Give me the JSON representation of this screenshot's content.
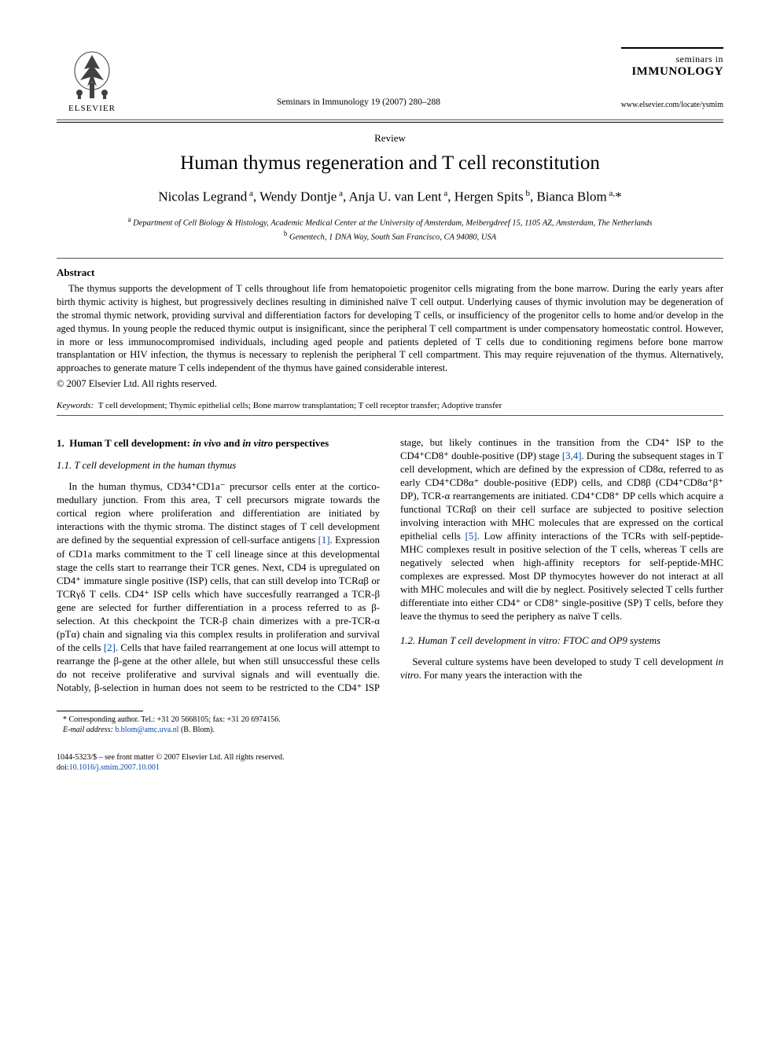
{
  "publisher": {
    "name": "ELSEVIER",
    "tree_fill": "#414141",
    "text_color": "#000000"
  },
  "journal": {
    "reference_line": "Seminars in Immunology 19 (2007) 280–288",
    "logo_line1": "seminars in",
    "logo_line2": "IMMUNOLOGY",
    "url": "www.elsevier.com/locate/ysmim"
  },
  "article": {
    "type": "Review",
    "title": "Human thymus regeneration and T cell reconstitution"
  },
  "authors_html": "Nicolas Legrand<sup> a</sup>, Wendy Dontje<sup> a</sup>, Anja U. van Lent<sup> a</sup>, Hergen Spits<sup> b</sup>, Bianca Blom<sup> a,</sup>*",
  "affiliations": {
    "a": "Department of Cell Biology & Histology, Academic Medical Center at the University of Amsterdam, Meibergdreef 15, 1105 AZ, Amsterdam, The Netherlands",
    "b": "Genentech, 1 DNA Way, South San Francisco, CA 94080, USA"
  },
  "abstract": {
    "heading": "Abstract",
    "text": "The thymus supports the development of T cells throughout life from hematopoietic progenitor cells migrating from the bone marrow. During the early years after birth thymic activity is highest, but progressively declines resulting in diminished naïve T cell output. Underlying causes of thymic involution may be degeneration of the stromal thymic network, providing survival and differentiation factors for developing T cells, or insufficiency of the progenitor cells to home and/or develop in the aged thymus. In young people the reduced thymic output is insignificant, since the peripheral T cell compartment is under compensatory homeostatic control. However, in more or less immunocompromised individuals, including aged people and patients depleted of T cells due to conditioning regimens before bone marrow transplantation or HIV infection, the thymus is necessary to replenish the peripheral T cell compartment. This may require rejuvenation of the thymus. Alternatively, approaches to generate mature T cells independent of the thymus have gained considerable interest.",
    "copyright": "© 2007 Elsevier Ltd. All rights reserved."
  },
  "keywords": {
    "label": "Keywords:",
    "text": "T cell development; Thymic epithelial cells; Bone marrow transplantation; T cell receptor transfer; Adoptive transfer"
  },
  "sections": {
    "s1": {
      "heading": "1.  Human T cell development: in vivo and in vitro perspectives",
      "s1_1": {
        "heading": "1.1.  T cell development in the human thymus",
        "para1_part1": "In the human thymus, CD34⁺CD1a⁻ precursor cells enter at the cortico-medullary junction. From this area, T cell precursors migrate towards the cortical region where proliferation and differentiation are initiated by interactions with the thymic stroma. The distinct stages of T cell development are defined by the sequential expression of cell-surface antigens ",
        "cite1": "[1]",
        "para1_part2": ". Expression of CD1a marks commitment to the T cell lineage since at this developmental stage the cells start to rearrange their TCR genes. Next, CD4 is upregulated on CD4⁺ immature single positive (ISP) cells, that can still develop into TCRαβ or TCRγδ T cells. CD4⁺ ISP cells which have succesfully rearranged a TCR-β gene are selected for further differentiation in a process referred to as β-selection. At this checkpoint the TCR-β chain dimerizes with a pre-TCR-α (pTα) chain and signaling via this complex results in proliferation and survival of the cells ",
        "cite2": "[2]",
        "para1_part3": ". Cells that have failed rearrangement at one locus will attempt to rearrange the β-gene at the other allele, but when still unsuccessful these cells do not receive proliferative and survival signals and will eventually die. Notably, β-selection in human does not seem to be restricted to the CD4⁺ ISP stage, but likely continues in the transition from the CD4⁺ ISP to the CD4⁺CD8⁺ double-positive (DP) stage ",
        "cite3": "[3,4]",
        "para1_part4": ". During the subsequent stages in T cell development, which are defined by the expression of CD8α, referred to as early CD4⁺CD8α⁺ double-positive (EDP) cells, and CD8β (CD4⁺CD8α⁺β⁺ DP), TCR-α rearrangements are initiated. CD4⁺CD8⁺ DP cells which acquire a functional TCRαβ on their cell surface are subjected to positive selection involving interaction with MHC molecules that are expressed on the cortical epithelial cells ",
        "cite5": "[5]",
        "para1_part5": ". Low affinity interactions of the TCRs with self-peptide-MHC complexes result in positive selection of the T cells, whereas T cells are negatively selected when high-affinity receptors for self-peptide-MHC complexes are expressed. Most DP thymocytes however do not interact at all with MHC molecules and will die by neglect. Positively selected T cells further differentiate into either CD4⁺ or CD8⁺ single-positive (SP) T cells, before they leave the thymus to seed the periphery as naïve T cells."
      },
      "s1_2": {
        "heading": "1.2.  Human T cell development in vitro: FTOC and OP9 systems",
        "para1": "Several culture systems have been developed to study T cell development in vitro. For many years the interaction with the"
      }
    }
  },
  "footnote": {
    "corr": "Corresponding author. Tel.: +31 20 5668105; fax: +31 20 6974156.",
    "email_label": "E-mail address:",
    "email": "b.blom@amc.uva.nl",
    "email_person": "(B. Blom)."
  },
  "footer": {
    "issn_line": "1044-5323/$ – see front matter © 2007 Elsevier Ltd. All rights reserved.",
    "doi_prefix": "doi:",
    "doi": "10.1016/j.smim.2007.10.001"
  },
  "colors": {
    "text": "#000000",
    "link": "#0645ad",
    "rule": "#555555"
  }
}
